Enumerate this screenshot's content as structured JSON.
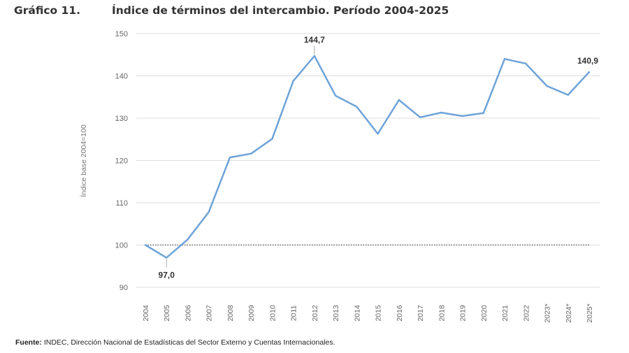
{
  "figure_label": "Gráfico 11.",
  "source": {
    "label": "Fuente:",
    "text": " INDEC, Dirección Nacional de Estadísticas del Sector Externo y Cuentas Internacionales."
  },
  "chart_data": {
    "type": "line",
    "title": "Índice de términos del intercambio. Período 2004-2025",
    "ylabel": "Índice base 2004=100",
    "xlabel": "",
    "ylim": [
      90,
      150
    ],
    "yticks": [
      90,
      100,
      110,
      120,
      130,
      140,
      150
    ],
    "grid": true,
    "reference_line": {
      "value": 100,
      "style": "dotted"
    },
    "categories": [
      "2004",
      "2005",
      "2006",
      "2007",
      "2008",
      "2009",
      "2010",
      "2011",
      "2012",
      "2013",
      "2014",
      "2015",
      "2016",
      "2017",
      "2018",
      "2019",
      "2020",
      "2021",
      "2022",
      "2023*",
      "2024*",
      "2025*"
    ],
    "series": [
      {
        "values": [
          100.0,
          97.0,
          101.3,
          107.8,
          120.7,
          121.6,
          125.1,
          138.8,
          144.7,
          135.3,
          132.7,
          126.3,
          134.3,
          130.2,
          131.3,
          130.5,
          131.2,
          144.0,
          142.9,
          137.6,
          135.5,
          140.9
        ],
        "color": "#6fa3d8"
      }
    ],
    "annotations": [
      {
        "index": 1,
        "text": "97,0",
        "position": "below"
      },
      {
        "index": 8,
        "text": "144,7",
        "position": "above"
      },
      {
        "index": 21,
        "text": "140,9",
        "position": "above"
      }
    ]
  }
}
